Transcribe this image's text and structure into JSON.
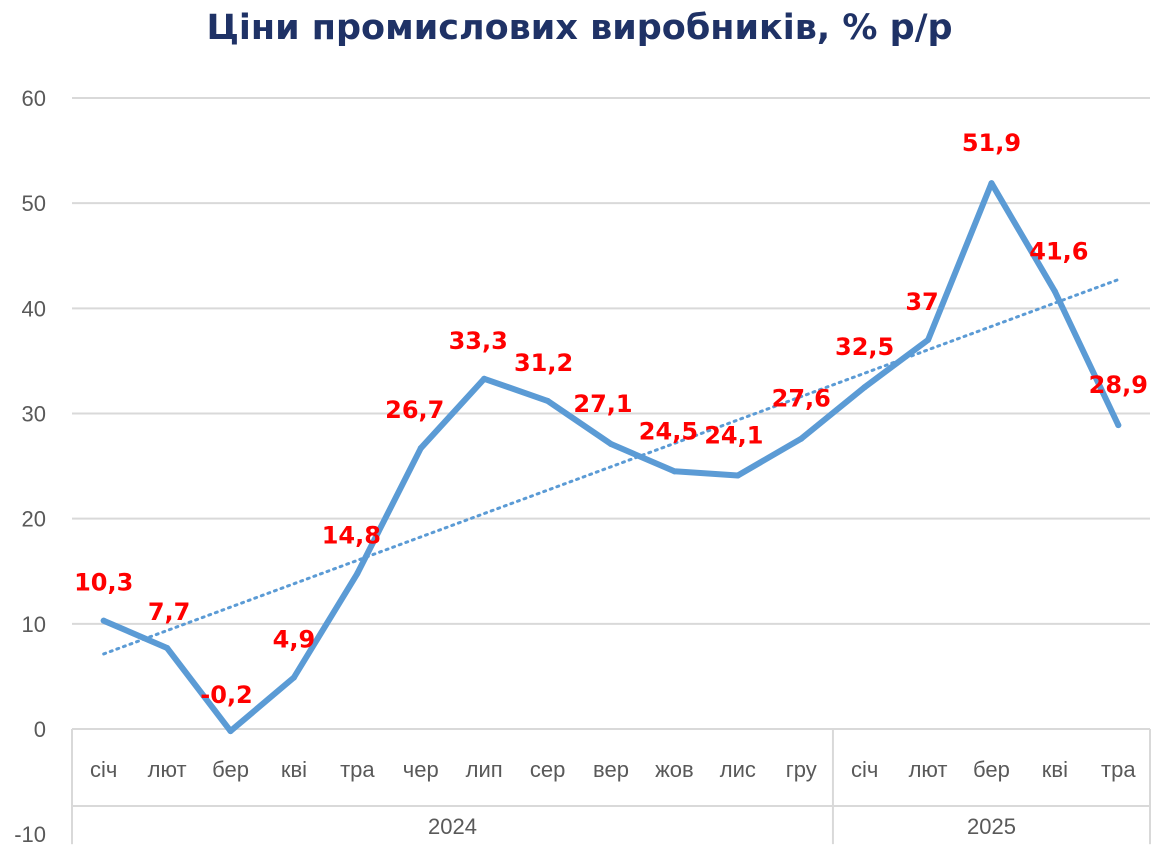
{
  "chart_data": {
    "type": "line",
    "title": "Ціни промислових виробників, % р/р",
    "categories": [
      "січ",
      "лют",
      "бер",
      "кві",
      "тра",
      "чер",
      "лип",
      "сер",
      "вер",
      "жов",
      "лис",
      "гру",
      "січ",
      "лют",
      "бер",
      "кві",
      "тра"
    ],
    "groups": [
      {
        "label": "2024",
        "count": 12
      },
      {
        "label": "2025",
        "count": 5
      }
    ],
    "series": [
      {
        "values": [
          10.3,
          7.7,
          -0.2,
          4.9,
          14.8,
          26.7,
          33.3,
          31.2,
          27.1,
          24.5,
          24.1,
          27.6,
          32.5,
          37,
          51.9,
          41.6,
          28.9
        ],
        "data_labels": [
          "10,3",
          "7,7",
          "-0,2",
          "4,9",
          "14,8",
          "26,7",
          "33,3",
          "31,2",
          "27,1",
          "24,5",
          "24,1",
          "27,6",
          "32,5",
          "37",
          "51,9",
          "41,6",
          "28,9"
        ],
        "color": "#5b9bd5",
        "label_color": "#ff0000"
      }
    ],
    "trendline": {
      "type": "linear",
      "style": "dotted",
      "color": "#5b9bd5"
    },
    "yticks": [
      "-10",
      "0",
      "10",
      "20",
      "30",
      "40",
      "50",
      "60"
    ],
    "ylim": [
      -10,
      60
    ],
    "grid": true,
    "legend": "none"
  }
}
